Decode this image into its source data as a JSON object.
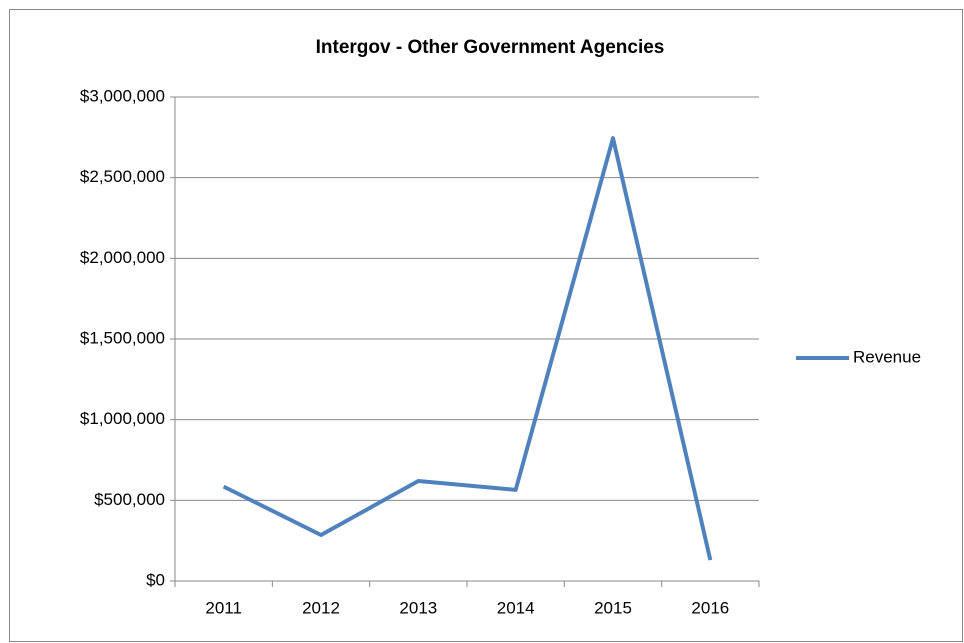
{
  "chart_data": {
    "type": "line",
    "title": "Intergov - Other Government Agencies",
    "categories": [
      "2011",
      "2012",
      "2013",
      "2014",
      "2015",
      "2016"
    ],
    "series": [
      {
        "name": "Revenue",
        "color": "#4f81bd",
        "values": [
          585000,
          285000,
          620000,
          565000,
          2745000,
          130000
        ]
      }
    ],
    "ylim": [
      0,
      3000000
    ],
    "yticks": [
      {
        "value": 0,
        "label": "$0"
      },
      {
        "value": 500000,
        "label": "$500,000"
      },
      {
        "value": 1000000,
        "label": "$1,000,000"
      },
      {
        "value": 1500000,
        "label": "$1,500,000"
      },
      {
        "value": 2000000,
        "label": "$2,000,000"
      },
      {
        "value": 2500000,
        "label": "$2,500,000"
      },
      {
        "value": 3000000,
        "label": "$3,000,000"
      }
    ],
    "grid": true,
    "legend": "right"
  }
}
